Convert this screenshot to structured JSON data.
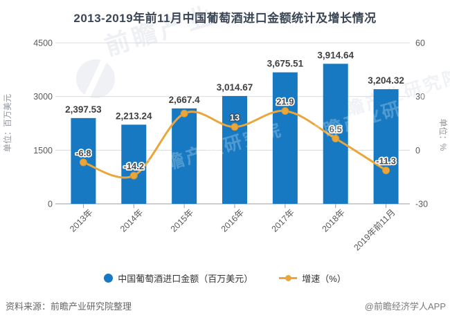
{
  "title": "2013-2019年前11月中国葡萄酒进口金额统计及增长情况",
  "colors": {
    "bar": "#1779c1",
    "line": "#eaa63a",
    "title_text": "#3a4656",
    "axis_text": "#595959",
    "grid_line": "#dcdcdc",
    "axis_line": "#9e9e9e",
    "bar_label_text": "#404040",
    "line_label_text": "#4a4a4a",
    "knockout_stroke": "#33475e",
    "unit_label_text": "#8f959e"
  },
  "chart_data": {
    "type": "bar+line",
    "title": "2013-2019年前11月中国葡萄酒进口金额统计及增长情况",
    "categories": [
      "2013年",
      "2014年",
      "2015年",
      "2016年",
      "2017年",
      "2018年",
      "2019年前11月"
    ],
    "series": [
      {
        "name": "中国葡萄酒进口金额（百万美元）",
        "type": "bar",
        "axis": "left",
        "values": [
          2397.53,
          2213.24,
          2667.4,
          3014.67,
          3675.51,
          3914.64,
          3204.32
        ],
        "labels": [
          "2,397.53",
          "2,213.24",
          "2,667.4",
          "3,014.67",
          "3,675.51",
          "3,914.64",
          "3,204.32"
        ]
      },
      {
        "name": "增速（%）",
        "type": "line",
        "axis": "right",
        "values": [
          -6.8,
          -14.2,
          20.5,
          13,
          21.9,
          6.5,
          -11.3
        ],
        "labels": [
          "-6.8",
          "-14.2",
          "",
          "13",
          "21.9",
          "6.5",
          "-11.3"
        ],
        "label_styles": [
          "halo",
          "halo",
          "none",
          "knockout",
          "halo",
          "halo",
          "halo"
        ]
      }
    ],
    "left_axis": {
      "title": "单位：百万美元",
      "range": [
        0,
        4500
      ],
      "ticks": [
        0,
        1500,
        3000,
        4500
      ]
    },
    "right_axis": {
      "title": "单位：%",
      "range": [
        -30,
        60
      ],
      "ticks": [
        -30,
        0,
        30,
        60
      ]
    },
    "grid": true,
    "legend_position": "bottom"
  },
  "legend": {
    "bar_label": "中国葡萄酒进口金额（百万美元）",
    "line_label": "增速（%）"
  },
  "watermark": {
    "big": "前瞻产业",
    "repeat": "前瞻产业研究院"
  },
  "footer": {
    "source": "资料来源：前瞻产业研究院整理",
    "credit": "@前瞻经济学人APP"
  }
}
